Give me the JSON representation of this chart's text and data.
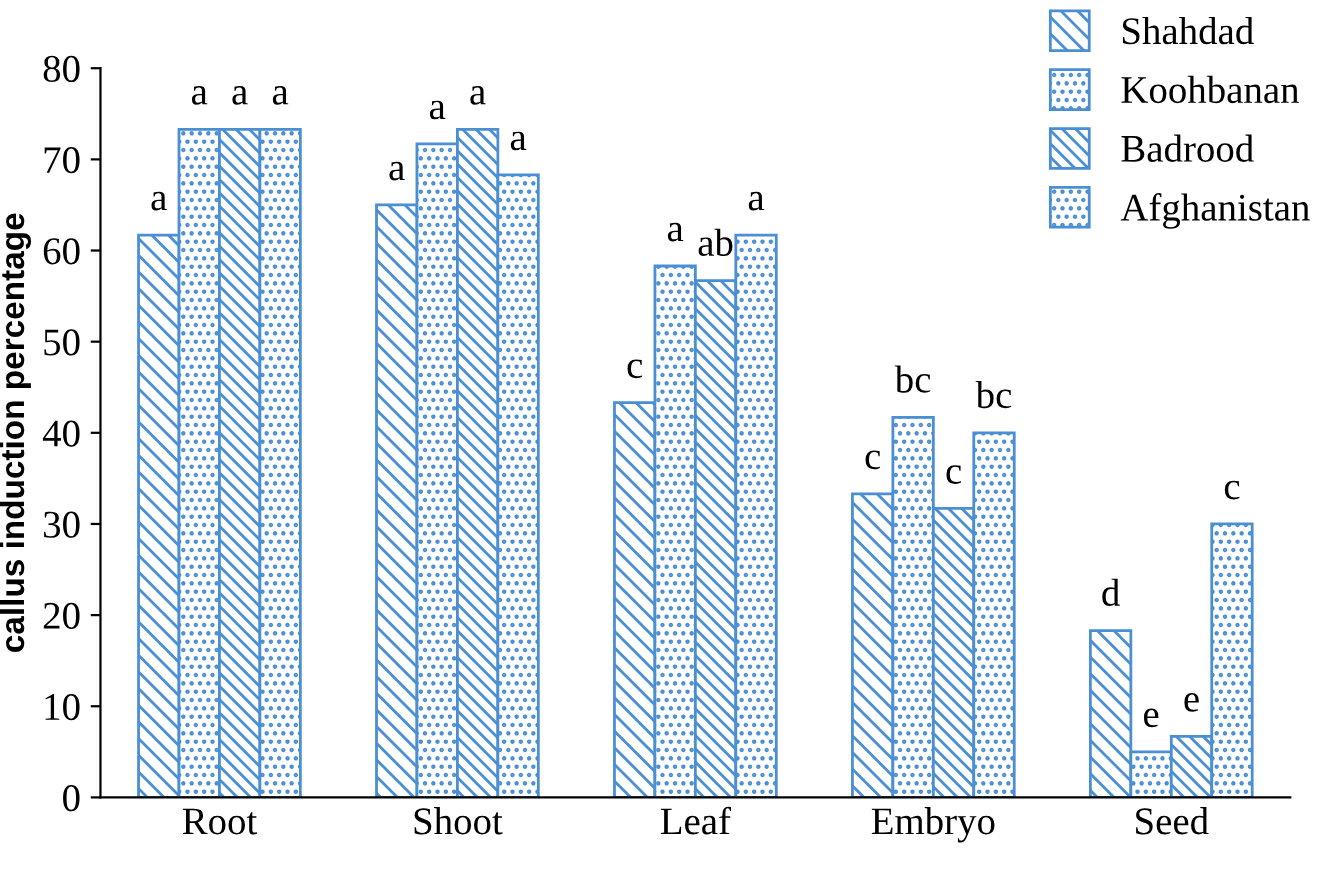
{
  "chart_data": {
    "type": "bar",
    "ylabel": "callus induction percentage",
    "categories": [
      "Root",
      "Shoot",
      "Leaf",
      "Embryo",
      "Seed"
    ],
    "series": [
      {
        "name": "Shahdad",
        "color": "#4a8fd4",
        "values": [
          61.7,
          65,
          43.3,
          33.3,
          18.3
        ],
        "value_labels": [
          "a",
          "a",
          "c",
          "c",
          "d"
        ]
      },
      {
        "name": "Koohbanan",
        "color": "#4a8fd4",
        "values": [
          73.3,
          71.7,
          58.3,
          41.7,
          5
        ],
        "value_labels": [
          "a",
          "a",
          "a",
          "bc",
          "e"
        ]
      },
      {
        "name": "Badrood",
        "color": "#4a8fd4",
        "values": [
          73.3,
          73.3,
          56.7,
          31.7,
          6.7
        ],
        "value_labels": [
          "a",
          "a",
          "ab",
          "c",
          "e"
        ]
      },
      {
        "name": "Afghanistan",
        "color": "#4a8fd4",
        "values": [
          73.3,
          68.3,
          61.7,
          40,
          30
        ],
        "value_labels": [
          "a",
          "a",
          "a",
          "bc",
          "c"
        ]
      }
    ],
    "ylim": [
      0,
      80
    ],
    "yticks": [
      0,
      10,
      20,
      30,
      40,
      50,
      60,
      70,
      80
    ],
    "grid": false,
    "legend": "top right"
  }
}
